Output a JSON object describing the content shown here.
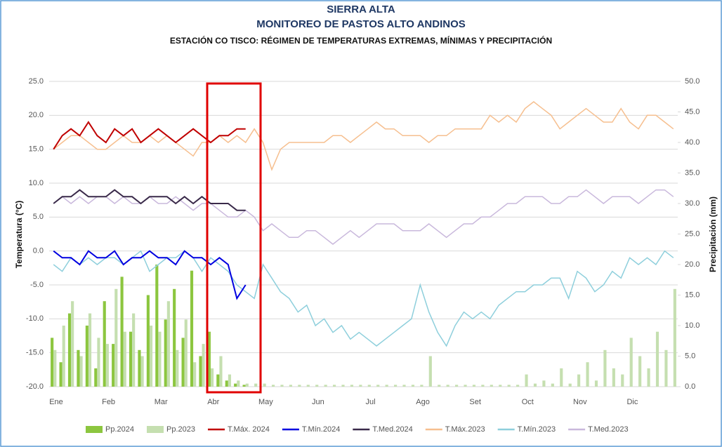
{
  "chart_data": {
    "type": "line",
    "title": "SIERRA ALTA",
    "subtitle": "MONITOREO DE PASTOS ALTO ANDINOS",
    "heading": "ESTACIÓN CO TISCO: RÉGIMEN DE TEMPERATURAS EXTREMAS, MÍNIMAS Y PRECIPITACIÓN",
    "y_label": "Temperatura (°C)",
    "y2_label": "Precipitación (mm)",
    "grid": true,
    "legend": "bottom",
    "x": [
      "Ene",
      null,
      null,
      null,
      null,
      null,
      "Feb",
      null,
      null,
      null,
      null,
      null,
      "Mar",
      null,
      null,
      null,
      null,
      null,
      "Abr",
      null,
      null,
      null,
      null,
      null,
      "May",
      null,
      null,
      null,
      null,
      null,
      "Jun",
      null,
      null,
      null,
      null,
      null,
      "Jul",
      null,
      null,
      null,
      null,
      null,
      "Ago",
      null,
      null,
      null,
      null,
      null,
      "Set",
      null,
      null,
      null,
      null,
      null,
      "Oct",
      null,
      null,
      null,
      null,
      null,
      "Nov",
      null,
      null,
      null,
      null,
      null,
      "Dic",
      null,
      null,
      null,
      null,
      null
    ],
    "ylim": [
      -20,
      25
    ],
    "yticks": [
      {
        "value": -20,
        "label": "-20.0"
      },
      {
        "value": -15,
        "label": "-15.0"
      },
      {
        "value": -10,
        "label": "-10.0"
      },
      {
        "value": -5,
        "label": "-5.0"
      },
      {
        "value": 0,
        "label": "0.0"
      },
      {
        "value": 5,
        "label": "5.0"
      },
      {
        "value": 10,
        "label": "10.0"
      },
      {
        "value": 15,
        "label": "15.0"
      },
      {
        "value": 20,
        "label": "20.0"
      },
      {
        "value": 25,
        "label": "25.0"
      }
    ],
    "y2lim": [
      0,
      50
    ],
    "y2ticks": [
      {
        "value": 0,
        "label": "0.0"
      },
      {
        "value": 5,
        "label": "5.0"
      },
      {
        "value": 10,
        "label": "10.0"
      },
      {
        "value": 15,
        "label": "15.0"
      },
      {
        "value": 20,
        "label": "20.0"
      },
      {
        "value": 25,
        "label": "25.0"
      },
      {
        "value": 30,
        "label": "30.0"
      },
      {
        "value": 35,
        "label": "35.0"
      },
      {
        "value": 40,
        "label": "40.0"
      },
      {
        "value": 45,
        "label": "45.0"
      },
      {
        "value": 50,
        "label": "50.0"
      }
    ],
    "series": [
      {
        "name": "Pp.2024",
        "type": "bar",
        "axis": "y2",
        "color": "#8cc63f",
        "values": [
          8,
          4,
          12,
          6,
          10,
          3,
          14,
          7,
          18,
          9,
          6,
          15,
          20,
          11,
          16,
          8,
          19,
          5,
          9,
          2,
          1,
          0.5,
          0.3,
          null,
          null,
          null,
          null,
          null,
          null,
          null,
          null,
          null,
          null,
          null,
          null,
          null,
          null,
          null,
          null,
          null,
          null,
          null,
          null,
          null,
          null,
          null,
          null,
          null,
          null,
          null,
          null,
          null,
          null,
          null,
          null,
          null,
          null,
          null,
          null,
          null,
          null,
          null,
          null,
          null,
          null,
          null,
          null,
          null,
          null,
          null,
          null,
          null
        ]
      },
      {
        "name": "Pp.2023",
        "type": "bar",
        "axis": "y2",
        "color": "#c5dfb0",
        "values": [
          6,
          10,
          14,
          5,
          12,
          8,
          7,
          16,
          9,
          12,
          5,
          10,
          9,
          14,
          6,
          11,
          4,
          7,
          3,
          5,
          2,
          1,
          0.5,
          0.5,
          0.5,
          0.3,
          0.3,
          0.3,
          0.3,
          0.3,
          0.3,
          0.3,
          0.3,
          0.3,
          0.3,
          0.3,
          0.3,
          0.3,
          0.3,
          0.3,
          0.3,
          0.3,
          0.3,
          5,
          0.3,
          0.3,
          0.3,
          0.3,
          0.3,
          0.3,
          0.3,
          0.3,
          0.3,
          0.3,
          2,
          0.5,
          1,
          0.5,
          3,
          0.5,
          2,
          4,
          1,
          6,
          3,
          2,
          8,
          5,
          3,
          9,
          6,
          16
        ]
      },
      {
        "name": "T.Máx. 2024",
        "type": "line",
        "color": "#c00000",
        "values": [
          15,
          17,
          18,
          17,
          19,
          17,
          16,
          18,
          17,
          18,
          16,
          17,
          18,
          17,
          16,
          17,
          18,
          17,
          16,
          17,
          17,
          18,
          18,
          null,
          null,
          null,
          null,
          null,
          null,
          null,
          null,
          null,
          null,
          null,
          null,
          null,
          null,
          null,
          null,
          null,
          null,
          null,
          null,
          null,
          null,
          null,
          null,
          null,
          null,
          null,
          null,
          null,
          null,
          null,
          null,
          null,
          null,
          null,
          null,
          null,
          null,
          null,
          null,
          null,
          null,
          null,
          null,
          null,
          null,
          null,
          null,
          null
        ]
      },
      {
        "name": "T.Mín.2024",
        "type": "line",
        "color": "#0000e0",
        "values": [
          0,
          -1,
          -1,
          -2,
          0,
          -1,
          -1,
          0,
          -2,
          -1,
          -1,
          0,
          -1,
          -1,
          -2,
          0,
          -1,
          -1,
          -2,
          -1,
          -2,
          -7,
          -5,
          null,
          null,
          null,
          null,
          null,
          null,
          null,
          null,
          null,
          null,
          null,
          null,
          null,
          null,
          null,
          null,
          null,
          null,
          null,
          null,
          null,
          null,
          null,
          null,
          null,
          null,
          null,
          null,
          null,
          null,
          null,
          null,
          null,
          null,
          null,
          null,
          null,
          null,
          null,
          null,
          null,
          null,
          null,
          null,
          null,
          null,
          null,
          null,
          null
        ]
      },
      {
        "name": "T.Med.2024",
        "type": "line",
        "color": "#3a2a4a",
        "values": [
          7,
          8,
          8,
          9,
          8,
          8,
          8,
          9,
          8,
          8,
          7,
          8,
          8,
          8,
          7,
          8,
          7,
          8,
          7,
          7,
          7,
          6,
          6,
          null,
          null,
          null,
          null,
          null,
          null,
          null,
          null,
          null,
          null,
          null,
          null,
          null,
          null,
          null,
          null,
          null,
          null,
          null,
          null,
          null,
          null,
          null,
          null,
          null,
          null,
          null,
          null,
          null,
          null,
          null,
          null,
          null,
          null,
          null,
          null,
          null,
          null,
          null,
          null,
          null,
          null,
          null,
          null,
          null,
          null,
          null,
          null,
          null
        ]
      },
      {
        "name": "T.Máx.2023",
        "type": "line",
        "color": "#f6bf8f",
        "values": [
          15,
          16,
          17,
          17,
          16,
          15,
          15,
          16,
          17,
          16,
          16,
          17,
          16,
          17,
          16,
          15,
          14,
          16,
          16,
          17,
          16,
          17,
          16,
          18,
          16,
          12,
          15,
          16,
          16,
          16,
          16,
          16,
          17,
          17,
          16,
          17,
          18,
          19,
          18,
          18,
          17,
          17,
          17,
          16,
          17,
          17,
          18,
          18,
          18,
          18,
          20,
          19,
          20,
          19,
          21,
          22,
          21,
          20,
          18,
          19,
          20,
          21,
          20,
          19,
          19,
          21,
          19,
          18,
          20,
          20,
          19,
          18
        ]
      },
      {
        "name": "T.Mín.2023",
        "type": "line",
        "color": "#8ecfdc",
        "values": [
          -2,
          -3,
          -1,
          -2,
          -1,
          -2,
          -1,
          -1,
          -2,
          -1,
          0,
          -3,
          -2,
          -1,
          -1,
          0,
          -1,
          -3,
          -1,
          -2,
          -3,
          -5,
          -6,
          -7,
          -2,
          -4,
          -6,
          -7,
          -9,
          -8,
          -11,
          -10,
          -12,
          -11,
          -13,
          -12,
          -13,
          -14,
          -13,
          -12,
          -11,
          -10,
          -5,
          -9,
          -12,
          -14,
          -11,
          -9,
          -10,
          -9,
          -10,
          -8,
          -7,
          -6,
          -6,
          -5,
          -5,
          -4,
          -4,
          -7,
          -3,
          -4,
          -6,
          -5,
          -3,
          -4,
          -1,
          -2,
          -1,
          -2,
          0,
          -1
        ]
      },
      {
        "name": "T.Med.2023",
        "type": "line",
        "color": "#c9b8dc",
        "values": [
          7,
          8,
          7,
          8,
          7,
          8,
          8,
          7,
          8,
          7,
          7,
          8,
          7,
          7,
          8,
          7,
          6,
          7,
          7,
          6,
          5,
          5,
          6,
          5,
          3,
          4,
          3,
          2,
          2,
          3,
          3,
          2,
          1,
          2,
          3,
          2,
          3,
          4,
          4,
          4,
          3,
          3,
          3,
          4,
          3,
          2,
          3,
          4,
          4,
          5,
          5,
          6,
          7,
          7,
          8,
          8,
          8,
          7,
          7,
          8,
          8,
          9,
          8,
          7,
          8,
          8,
          8,
          7,
          8,
          9,
          9,
          8
        ]
      }
    ]
  }
}
